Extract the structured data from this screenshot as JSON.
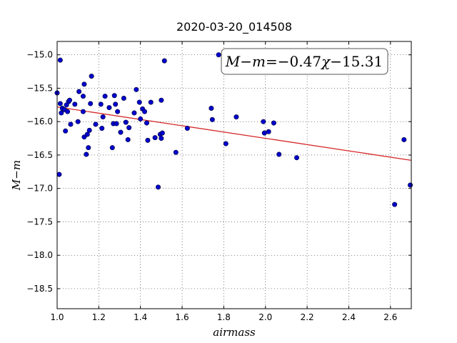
{
  "chart_data": {
    "type": "scatter",
    "title": "2020-03-20_014508",
    "xlabel": "airmass",
    "ylabel": "M−m",
    "xlim": [
      1.0,
      2.7
    ],
    "ylim": [
      -18.8,
      -14.8
    ],
    "y_inverted": true,
    "grid": true,
    "grid_style": "dotted",
    "x_ticks": [
      1.0,
      1.2,
      1.4,
      1.6,
      1.8,
      2.0,
      2.2,
      2.4,
      2.6
    ],
    "x_tick_labels": [
      "1.0",
      "1.2",
      "1.4",
      "1.6",
      "1.8",
      "2.0",
      "2.2",
      "2.4",
      "2.6"
    ],
    "y_ticks": [
      -15.0,
      -15.5,
      -16.0,
      -16.5,
      -17.0,
      -17.5,
      -18.0,
      -18.5
    ],
    "y_tick_labels": [
      "−15.0",
      "−15.5",
      "−16.0",
      "−16.5",
      "−17.0",
      "−17.5",
      "−18.0",
      "−18.5"
    ],
    "annotation": {
      "parts": [
        "M",
        "−",
        "m",
        "=",
        "−0.47",
        "χ",
        "−15.31"
      ],
      "position": "top-right"
    },
    "fit_line": {
      "slope": -0.47,
      "intercept": -15.31,
      "color": "#d62728"
    },
    "point_color": "#0000cc",
    "points": [
      {
        "x": 1.0,
        "y": -15.57
      },
      {
        "x": 1.01,
        "y": -16.79
      },
      {
        "x": 1.015,
        "y": -15.08
      },
      {
        "x": 1.015,
        "y": -15.73
      },
      {
        "x": 1.02,
        "y": -15.87
      },
      {
        "x": 1.025,
        "y": -15.8
      },
      {
        "x": 1.035,
        "y": -15.82
      },
      {
        "x": 1.04,
        "y": -16.14
      },
      {
        "x": 1.045,
        "y": -15.75
      },
      {
        "x": 1.05,
        "y": -15.85
      },
      {
        "x": 1.055,
        "y": -15.7
      },
      {
        "x": 1.06,
        "y": -15.68
      },
      {
        "x": 1.065,
        "y": -16.04
      },
      {
        "x": 1.085,
        "y": -15.74
      },
      {
        "x": 1.1,
        "y": -16.0
      },
      {
        "x": 1.105,
        "y": -15.55
      },
      {
        "x": 1.125,
        "y": -15.62
      },
      {
        "x": 1.125,
        "y": -15.85
      },
      {
        "x": 1.13,
        "y": -16.23
      },
      {
        "x": 1.13,
        "y": -15.44
      },
      {
        "x": 1.14,
        "y": -16.49
      },
      {
        "x": 1.145,
        "y": -16.19
      },
      {
        "x": 1.15,
        "y": -16.39
      },
      {
        "x": 1.155,
        "y": -16.13
      },
      {
        "x": 1.16,
        "y": -15.73
      },
      {
        "x": 1.165,
        "y": -15.32
      },
      {
        "x": 1.185,
        "y": -16.04
      },
      {
        "x": 1.21,
        "y": -15.74
      },
      {
        "x": 1.215,
        "y": -16.1
      },
      {
        "x": 1.22,
        "y": -15.93
      },
      {
        "x": 1.23,
        "y": -15.62
      },
      {
        "x": 1.25,
        "y": -15.79
      },
      {
        "x": 1.265,
        "y": -16.39
      },
      {
        "x": 1.27,
        "y": -16.03
      },
      {
        "x": 1.275,
        "y": -15.61
      },
      {
        "x": 1.28,
        "y": -15.74
      },
      {
        "x": 1.285,
        "y": -16.03
      },
      {
        "x": 1.29,
        "y": -15.85
      },
      {
        "x": 1.305,
        "y": -16.16
      },
      {
        "x": 1.32,
        "y": -15.65
      },
      {
        "x": 1.33,
        "y": -16.01
      },
      {
        "x": 1.34,
        "y": -16.27
      },
      {
        "x": 1.345,
        "y": -16.09
      },
      {
        "x": 1.37,
        "y": -15.87
      },
      {
        "x": 1.38,
        "y": -15.52
      },
      {
        "x": 1.395,
        "y": -15.71
      },
      {
        "x": 1.4,
        "y": -15.96
      },
      {
        "x": 1.41,
        "y": -15.81
      },
      {
        "x": 1.42,
        "y": -15.85
      },
      {
        "x": 1.43,
        "y": -16.02
      },
      {
        "x": 1.435,
        "y": -16.28
      },
      {
        "x": 1.45,
        "y": -15.71
      },
      {
        "x": 1.47,
        "y": -16.24
      },
      {
        "x": 1.485,
        "y": -16.98
      },
      {
        "x": 1.495,
        "y": -16.19
      },
      {
        "x": 1.5,
        "y": -15.68
      },
      {
        "x": 1.5,
        "y": -16.25
      },
      {
        "x": 1.505,
        "y": -16.17
      },
      {
        "x": 1.515,
        "y": -15.09
      },
      {
        "x": 1.57,
        "y": -16.46
      },
      {
        "x": 1.625,
        "y": -16.1
      },
      {
        "x": 1.74,
        "y": -15.8
      },
      {
        "x": 1.745,
        "y": -15.97
      },
      {
        "x": 1.775,
        "y": -15.0
      },
      {
        "x": 1.81,
        "y": -16.33
      },
      {
        "x": 1.86,
        "y": -15.93
      },
      {
        "x": 1.99,
        "y": -16.0
      },
      {
        "x": 1.995,
        "y": -16.17
      },
      {
        "x": 2.015,
        "y": -16.15
      },
      {
        "x": 2.04,
        "y": -16.02
      },
      {
        "x": 2.065,
        "y": -16.49
      },
      {
        "x": 2.15,
        "y": -16.54
      },
      {
        "x": 2.62,
        "y": -17.24
      },
      {
        "x": 2.665,
        "y": -16.27
      },
      {
        "x": 2.695,
        "y": -16.95
      }
    ]
  }
}
